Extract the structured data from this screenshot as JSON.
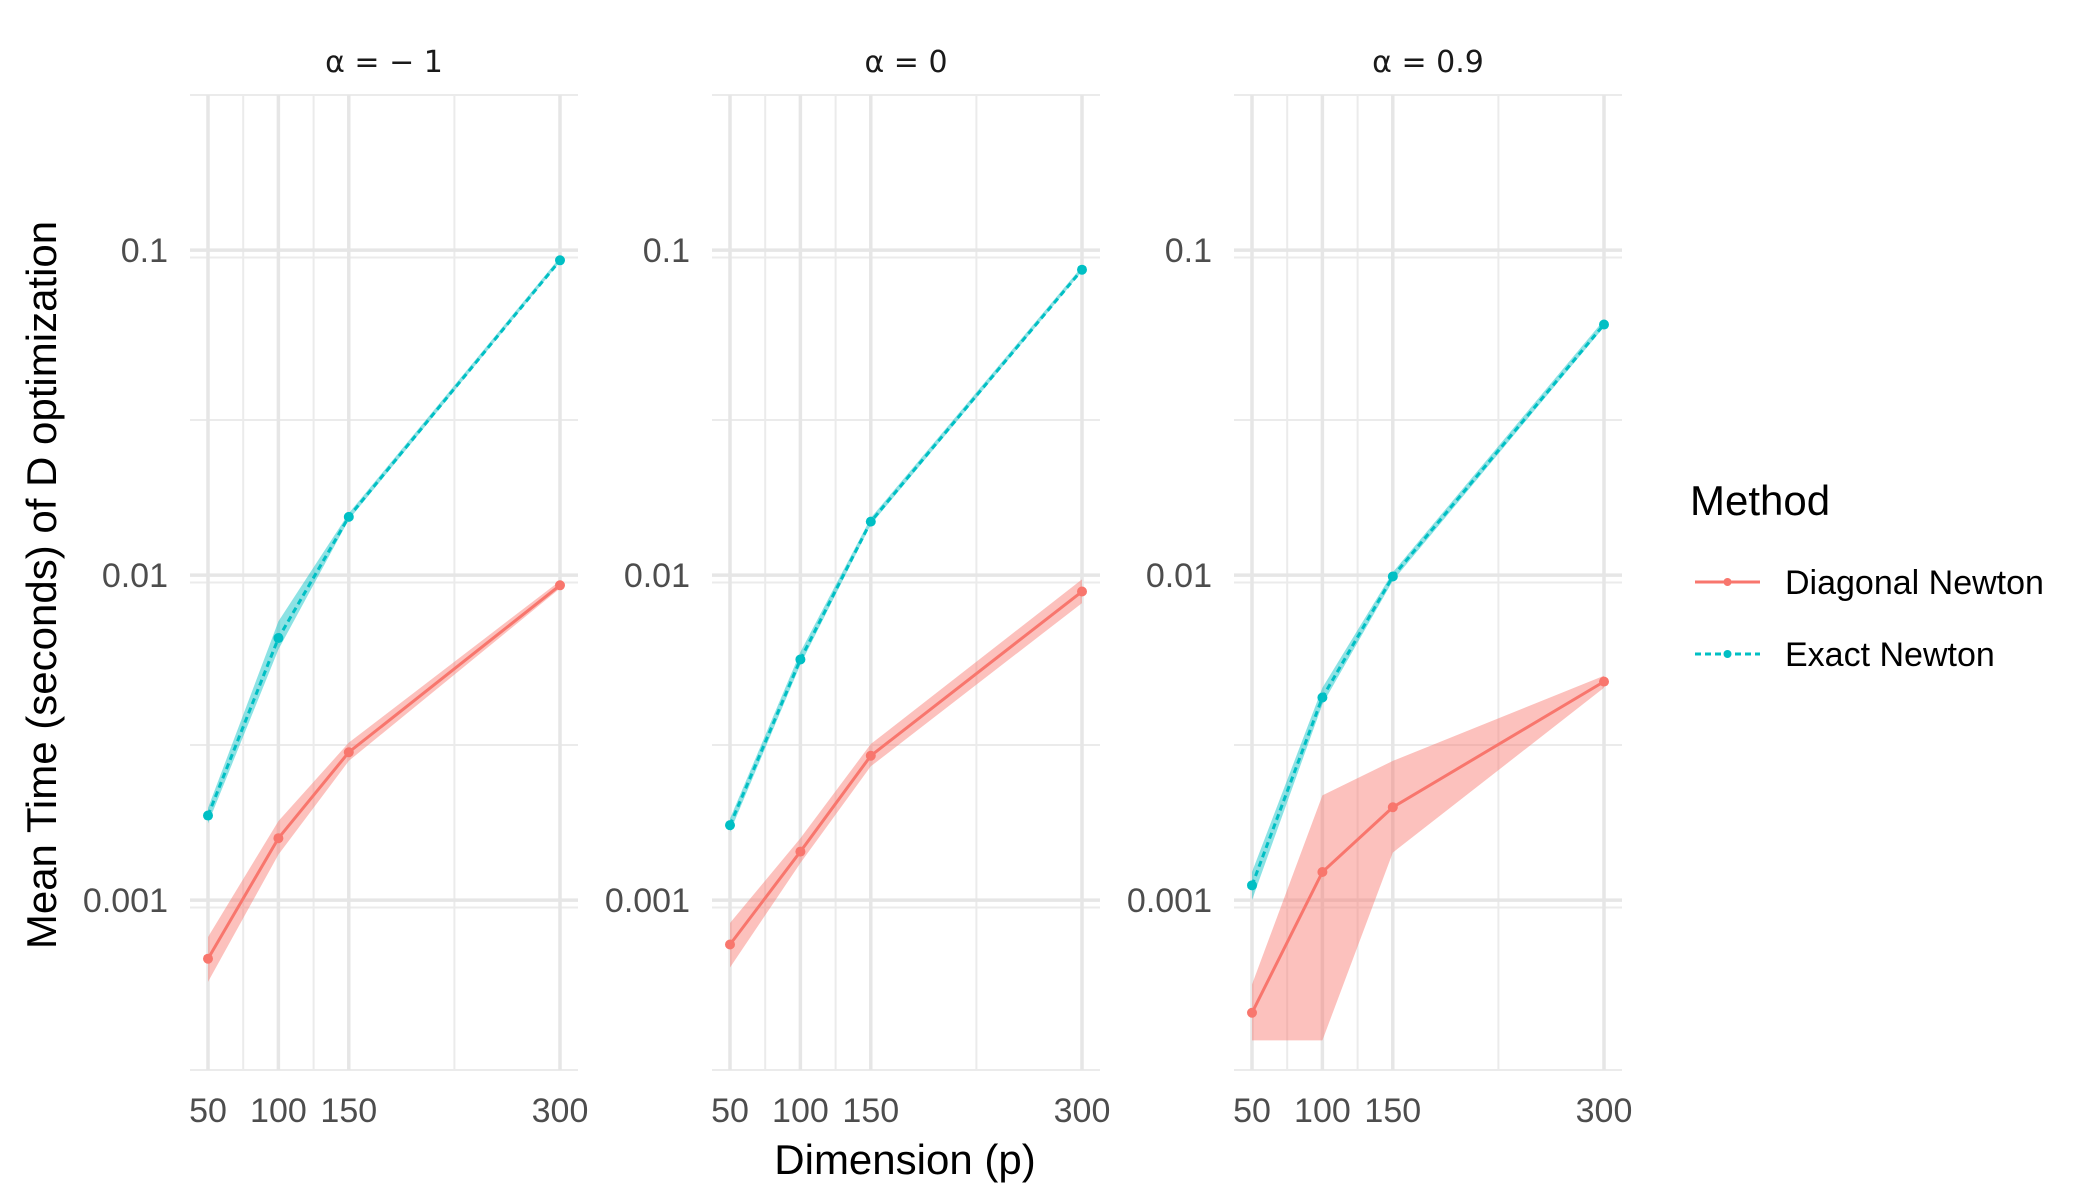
{
  "chart_data": {
    "type": "line",
    "facet_by": "alpha",
    "panels": [
      {
        "label": "α = − 1",
        "series": [
          {
            "name": "Diagonal Newton",
            "x": [
              50,
              100,
              150,
              300
            ],
            "y": [
              0.00066,
              0.00155,
              0.00285,
              0.0093
            ],
            "lower": [
              0.00056,
              0.00138,
              0.00268,
              0.0091
            ],
            "upper": [
              0.00077,
              0.00175,
              0.00305,
              0.0096
            ]
          },
          {
            "name": "Exact Newton",
            "x": [
              50,
              100,
              150,
              300
            ],
            "y": [
              0.00182,
              0.0064,
              0.0151,
              0.093
            ],
            "lower": [
              0.00172,
              0.0059,
              0.0148,
              0.092
            ],
            "upper": [
              0.00192,
              0.0072,
              0.0155,
              0.095
            ]
          }
        ]
      },
      {
        "label": "α = 0",
        "series": [
          {
            "name": "Diagonal Newton",
            "x": [
              50,
              100,
              150,
              300
            ],
            "y": [
              0.00073,
              0.00141,
              0.00278,
              0.0089
            ],
            "lower": [
              0.00062,
              0.0013,
              0.00258,
              0.0082
            ],
            "upper": [
              0.00085,
              0.00155,
              0.00302,
              0.0097
            ]
          },
          {
            "name": "Exact Newton",
            "x": [
              50,
              100,
              150,
              300
            ],
            "y": [
              0.0017,
              0.0055,
              0.0146,
              0.087
            ],
            "lower": [
              0.00162,
              0.0053,
              0.0143,
              0.086
            ],
            "upper": [
              0.00178,
              0.0058,
              0.015,
              0.089
            ]
          }
        ]
      },
      {
        "label": "α = 0.9",
        "series": [
          {
            "name": "Diagonal Newton",
            "x": [
              50,
              100,
              150,
              300
            ],
            "y": [
              0.00045,
              0.00122,
              0.00193,
              0.0047
            ],
            "lower": [
              0.00037,
              0.00037,
              0.0014,
              0.0045
            ],
            "upper": [
              0.00055,
              0.0021,
              0.00268,
              0.0049
            ]
          },
          {
            "name": "Exact Newton",
            "x": [
              50,
              100,
              150,
              300
            ],
            "y": [
              0.00111,
              0.0042,
              0.0099,
              0.059
            ],
            "lower": [
              0.001,
              0.004,
              0.0096,
              0.058
            ],
            "upper": [
              0.00122,
              0.0045,
              0.0102,
              0.061
            ]
          }
        ]
      }
    ],
    "x_ticks": [
      "50",
      "100",
      "150",
      "300"
    ],
    "x_tick_values": [
      50,
      100,
      150,
      300
    ],
    "y_ticks": [
      "0.001",
      "0.01",
      "0.1"
    ],
    "y_tick_values": [
      0.001,
      0.01,
      0.1
    ],
    "y_scale": "log10",
    "xlim": [
      50,
      300
    ],
    "ylim": [
      0.0003,
      0.3
    ],
    "xlabel": "Dimension (p)",
    "ylabel": "Mean Time (seconds) of D optimization",
    "legend": {
      "title": "Method",
      "position": "right",
      "entries": [
        {
          "name": "Diagonal Newton",
          "color": "#F8766D",
          "linestyle": "solid"
        },
        {
          "name": "Exact Newton",
          "color": "#00BFC4",
          "linestyle": "dashed"
        }
      ]
    },
    "grid": true,
    "theme": "minimal"
  }
}
